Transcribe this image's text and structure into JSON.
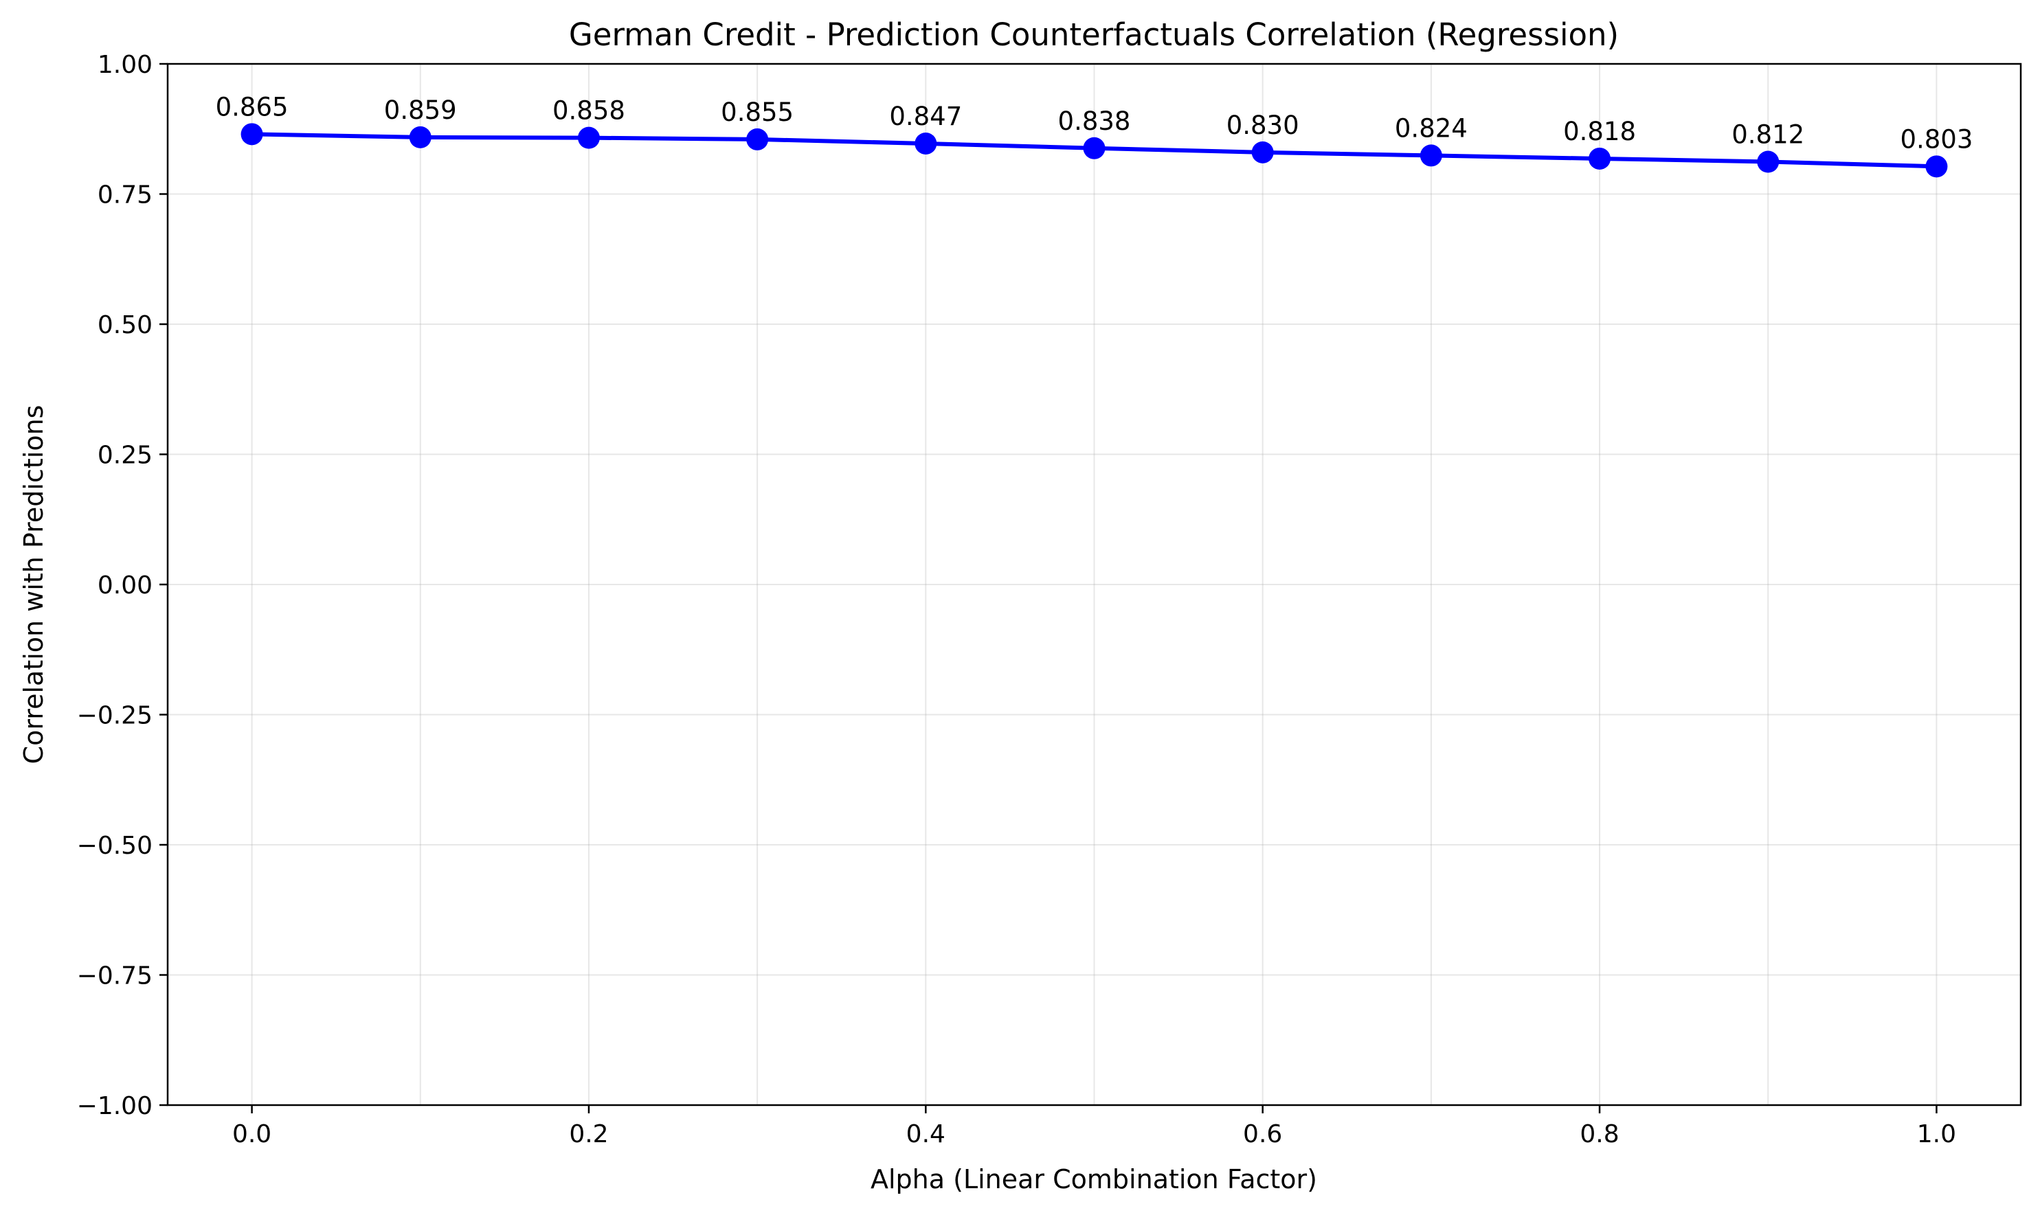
{
  "chart_data": {
    "type": "line",
    "title": "German Credit - Prediction Counterfactuals Correlation (Regression)",
    "xlabel": "Alpha (Linear Combination Factor)",
    "ylabel": "Correlation with Predictions",
    "x": [
      0.0,
      0.1,
      0.2,
      0.3,
      0.4,
      0.5,
      0.6,
      0.7,
      0.8,
      0.9,
      1.0
    ],
    "series": [
      {
        "values": [
          0.865,
          0.859,
          0.858,
          0.855,
          0.847,
          0.838,
          0.83,
          0.824,
          0.818,
          0.812,
          0.803
        ],
        "data_labels": [
          "0.865",
          "0.859",
          "0.858",
          "0.855",
          "0.847",
          "0.838",
          "0.830",
          "0.824",
          "0.818",
          "0.812",
          "0.803"
        ],
        "color": "#0000ff",
        "marker": "circle"
      }
    ],
    "xlim": [
      -0.05,
      1.05
    ],
    "ylim": [
      -1.0,
      1.0
    ],
    "xticks": [
      0.0,
      0.2,
      0.4,
      0.6,
      0.8,
      1.0
    ],
    "xtick_labels": [
      "0.0",
      "0.2",
      "0.4",
      "0.6",
      "0.8",
      "1.0"
    ],
    "yticks": [
      -1.0,
      -0.75,
      -0.5,
      -0.25,
      0.0,
      0.25,
      0.5,
      0.75,
      1.0
    ],
    "ytick_labels": [
      "−1.00",
      "−0.75",
      "−0.50",
      "−0.25",
      "0.00",
      "0.25",
      "0.50",
      "0.75",
      "1.00"
    ],
    "x_grid_values": [
      0.0,
      0.1,
      0.2,
      0.3,
      0.4,
      0.5,
      0.6,
      0.7,
      0.8,
      0.9,
      1.0
    ],
    "grid": true,
    "legend": "none"
  }
}
